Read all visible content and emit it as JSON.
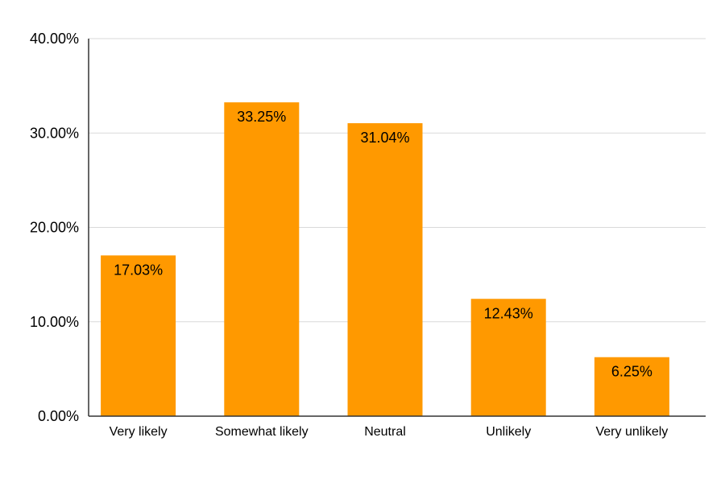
{
  "chart_data": {
    "type": "bar",
    "title": "",
    "xlabel": "",
    "ylabel": "",
    "categories": [
      "Very likely",
      "Somewhat likely",
      "Neutral",
      "Unlikely",
      "Very unlikely"
    ],
    "values": [
      17.03,
      33.25,
      31.04,
      12.43,
      6.25
    ],
    "data_labels": [
      "17.03%",
      "33.25%",
      "31.04%",
      "12.43%",
      "6.25%"
    ],
    "ylim": [
      0,
      40
    ],
    "yticks": [
      0,
      10,
      20,
      30,
      40
    ],
    "ytick_labels": [
      "0.00%",
      "10.00%",
      "20.00%",
      "30.00%",
      "40.00%"
    ],
    "grid": true,
    "legend": "none",
    "colors": {
      "bar": "#ff9900",
      "grid": "#d9d9d9",
      "axis": "#333333",
      "text": "#000000"
    }
  }
}
